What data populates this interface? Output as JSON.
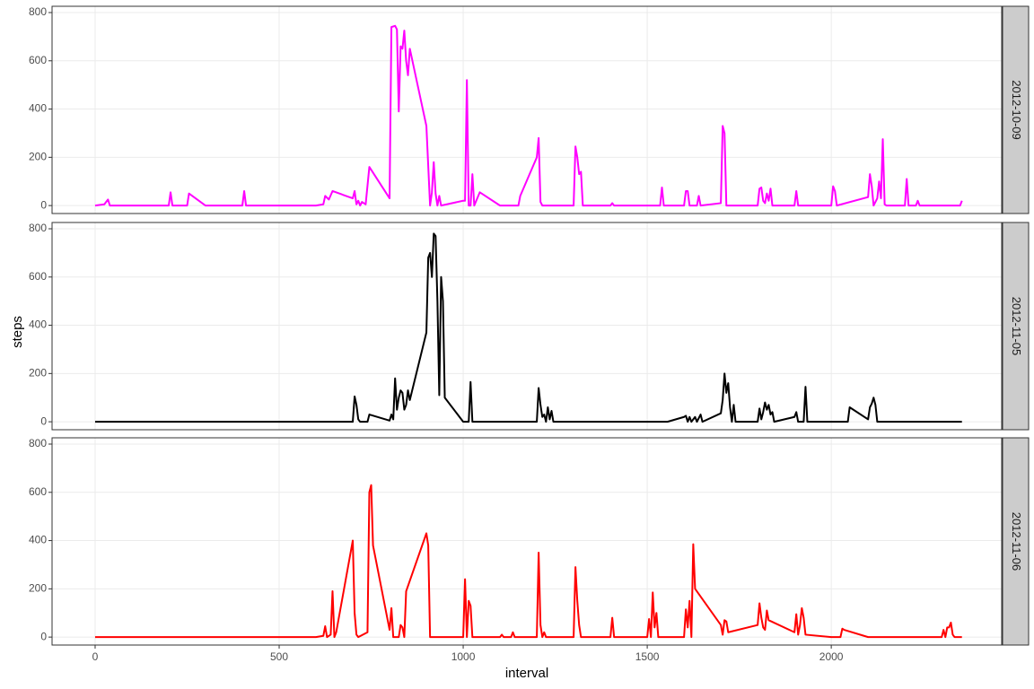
{
  "chart_data": {
    "type": "line",
    "x_label": "interval",
    "y_label": "steps",
    "xlim": [
      -117,
      2463
    ],
    "xticks": [
      0,
      500,
      1000,
      1500,
      2000
    ],
    "ylim": [
      -33,
      826
    ],
    "yticks": [
      0,
      200,
      400,
      600,
      800
    ],
    "grid": true,
    "series": [
      {
        "name": "2012-10-09",
        "color": "#ff00ff",
        "x": [
          0,
          25,
          35,
          40,
          200,
          205,
          210,
          250,
          255,
          300,
          400,
          405,
          410,
          600,
          620,
          625,
          635,
          645,
          700,
          705,
          710,
          715,
          720,
          725,
          735,
          745,
          800,
          805,
          815,
          820,
          825,
          830,
          835,
          840,
          845,
          850,
          855,
          900,
          910,
          915,
          920,
          925,
          930,
          935,
          940,
          1000,
          1005,
          1010,
          1015,
          1020,
          1025,
          1030,
          1045,
          1100,
          1150,
          1155,
          1200,
          1205,
          1210,
          1215,
          1300,
          1305,
          1310,
          1315,
          1320,
          1325,
          1400,
          1405,
          1410,
          1535,
          1540,
          1545,
          1600,
          1605,
          1610,
          1615,
          1635,
          1640,
          1645,
          1700,
          1705,
          1710,
          1715,
          1800,
          1805,
          1810,
          1815,
          1820,
          1825,
          1830,
          1835,
          1840,
          1900,
          1905,
          1910,
          2000,
          2005,
          2010,
          2015,
          2100,
          2105,
          2110,
          2115,
          2125,
          2130,
          2135,
          2140,
          2145,
          2150,
          2200,
          2205,
          2210,
          2230,
          2235,
          2240,
          2350,
          2355
        ],
        "values": [
          0,
          5,
          25,
          0,
          0,
          55,
          0,
          0,
          50,
          0,
          0,
          60,
          0,
          0,
          5,
          40,
          25,
          60,
          30,
          60,
          5,
          20,
          0,
          15,
          5,
          160,
          30,
          740,
          745,
          730,
          390,
          660,
          650,
          725,
          600,
          540,
          650,
          330,
          0,
          55,
          180,
          50,
          0,
          40,
          0,
          20,
          20,
          520,
          0,
          0,
          130,
          0,
          55,
          0,
          0,
          40,
          200,
          280,
          15,
          0,
          0,
          245,
          200,
          130,
          140,
          0,
          0,
          10,
          0,
          0,
          75,
          0,
          0,
          60,
          60,
          0,
          0,
          40,
          0,
          10,
          330,
          300,
          0,
          0,
          70,
          75,
          20,
          10,
          50,
          20,
          70,
          0,
          0,
          60,
          0,
          0,
          80,
          60,
          0,
          35,
          130,
          80,
          0,
          30,
          100,
          30,
          275,
          5,
          0,
          0,
          110,
          0,
          0,
          20,
          0,
          0,
          20
        ]
      },
      {
        "name": "2012-11-05",
        "color": "#000000",
        "x": [
          0,
          700,
          705,
          710,
          715,
          720,
          740,
          745,
          800,
          805,
          810,
          815,
          820,
          825,
          830,
          835,
          840,
          845,
          850,
          855,
          900,
          905,
          910,
          915,
          920,
          925,
          930,
          935,
          940,
          945,
          950,
          1000,
          1015,
          1020,
          1025,
          1200,
          1205,
          1210,
          1215,
          1220,
          1225,
          1230,
          1235,
          1240,
          1245,
          1555,
          1600,
          1605,
          1610,
          1615,
          1620,
          1630,
          1635,
          1645,
          1650,
          1700,
          1705,
          1710,
          1715,
          1720,
          1725,
          1730,
          1735,
          1740,
          1800,
          1805,
          1810,
          1815,
          1820,
          1825,
          1830,
          1835,
          1840,
          1845,
          1900,
          1905,
          1910,
          1925,
          1930,
          1935,
          2045,
          2050,
          2100,
          2105,
          2110,
          2115,
          2120,
          2125,
          2355
        ],
        "values": [
          0,
          0,
          105,
          70,
          10,
          0,
          0,
          30,
          5,
          30,
          10,
          180,
          50,
          100,
          130,
          120,
          50,
          70,
          130,
          90,
          370,
          680,
          700,
          600,
          780,
          770,
          500,
          110,
          600,
          500,
          100,
          0,
          0,
          165,
          0,
          0,
          140,
          70,
          20,
          30,
          0,
          60,
          10,
          45,
          0,
          0,
          20,
          25,
          0,
          20,
          0,
          20,
          0,
          30,
          0,
          35,
          90,
          200,
          120,
          160,
          60,
          0,
          70,
          0,
          0,
          55,
          10,
          40,
          80,
          50,
          70,
          30,
          40,
          0,
          20,
          40,
          0,
          0,
          145,
          0,
          0,
          60,
          10,
          60,
          75,
          100,
          70,
          0,
          0
        ]
      },
      {
        "name": "2012-11-06",
        "color": "#ff0000",
        "x": [
          0,
          600,
          620,
          625,
          630,
          640,
          645,
          650,
          655,
          700,
          705,
          710,
          715,
          740,
          745,
          750,
          755,
          800,
          805,
          810,
          825,
          830,
          835,
          840,
          845,
          900,
          905,
          910,
          1000,
          1005,
          1010,
          1015,
          1020,
          1025,
          1100,
          1105,
          1110,
          1130,
          1135,
          1140,
          1200,
          1205,
          1210,
          1215,
          1220,
          1225,
          1300,
          1305,
          1310,
          1315,
          1320,
          1400,
          1405,
          1410,
          1500,
          1505,
          1510,
          1515,
          1520,
          1525,
          1530,
          1600,
          1605,
          1610,
          1615,
          1620,
          1625,
          1630,
          1700,
          1705,
          1710,
          1715,
          1720,
          1800,
          1805,
          1810,
          1815,
          1820,
          1825,
          1830,
          1900,
          1905,
          1910,
          1915,
          1920,
          1925,
          1930,
          2000,
          2025,
          2030,
          2035,
          2100,
          2300,
          2305,
          2310,
          2315,
          2320,
          2325,
          2330,
          2335,
          2355
        ],
        "values": [
          0,
          0,
          5,
          45,
          0,
          10,
          190,
          0,
          20,
          400,
          100,
          10,
          0,
          20,
          600,
          630,
          380,
          30,
          120,
          0,
          0,
          50,
          40,
          0,
          190,
          430,
          380,
          0,
          0,
          240,
          0,
          150,
          130,
          0,
          0,
          10,
          0,
          0,
          20,
          0,
          0,
          350,
          50,
          0,
          20,
          0,
          0,
          290,
          150,
          50,
          0,
          0,
          80,
          0,
          0,
          75,
          0,
          185,
          40,
          100,
          0,
          0,
          115,
          40,
          150,
          0,
          385,
          200,
          50,
          10,
          70,
          65,
          20,
          50,
          140,
          80,
          40,
          30,
          110,
          70,
          20,
          95,
          10,
          50,
          120,
          80,
          10,
          0,
          0,
          35,
          30,
          0,
          0,
          30,
          0,
          40,
          40,
          60,
          10,
          0,
          0
        ]
      }
    ]
  }
}
